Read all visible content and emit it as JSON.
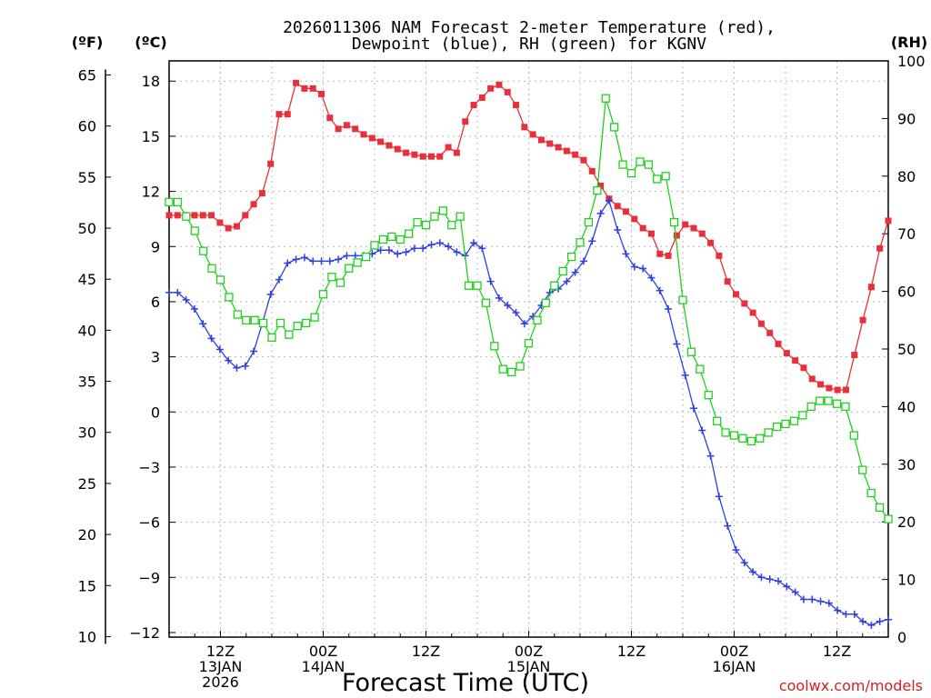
{
  "chart_data": {
    "type": "line",
    "title_line1": "2026011306 NAM Forecast 2-meter Temperature (red),",
    "title_line2": "Dewpoint (blue), RH (green) for KGNV",
    "xlabel": "Forecast Time (UTC)",
    "credit": "coolwx.com/models",
    "unit_left_f": "(ºF)",
    "unit_left_c": "(ºC)",
    "unit_right": "(RH)",
    "x_hours_range": [
      0,
      84
    ],
    "celsius_range": [
      -12.25,
      19.1
    ],
    "rh_range": [
      0,
      100
    ],
    "f_ticks": [
      "10",
      "15",
      "20",
      "25",
      "30",
      "35",
      "40",
      "45",
      "50",
      "55",
      "60",
      "65"
    ],
    "c_ticks": [
      "-12",
      "-9",
      "-6",
      "-3",
      "0",
      "3",
      "6",
      "9",
      "12",
      "15",
      "18"
    ],
    "rh_ticks": [
      "0",
      "10",
      "20",
      "30",
      "40",
      "50",
      "60",
      "70",
      "80",
      "90",
      "100"
    ],
    "x_ticks": [
      {
        "hour": 6,
        "lines": [
          "12Z",
          "13JAN",
          "2026"
        ]
      },
      {
        "hour": 18,
        "lines": [
          "00Z",
          "14JAN"
        ]
      },
      {
        "hour": 30,
        "lines": [
          "12Z"
        ]
      },
      {
        "hour": 42,
        "lines": [
          "00Z",
          "15JAN"
        ]
      },
      {
        "hour": 54,
        "lines": [
          "12Z"
        ]
      },
      {
        "hour": 66,
        "lines": [
          "00Z",
          "16JAN"
        ]
      },
      {
        "hour": 78,
        "lines": [
          "12Z"
        ]
      }
    ],
    "series": [
      {
        "name": "2-meter Temperature",
        "unit": "C",
        "color": "#e8303a",
        "marker": "filled-square",
        "values": [
          10.7,
          10.7,
          10.7,
          10.7,
          10.7,
          10.7,
          10.3,
          10.0,
          10.1,
          10.7,
          11.3,
          11.9,
          13.5,
          16.2,
          16.2,
          17.9,
          17.6,
          17.6,
          17.3,
          16.0,
          15.4,
          15.6,
          15.4,
          15.1,
          14.9,
          14.7,
          14.5,
          14.3,
          14.1,
          14.0,
          13.9,
          13.9,
          13.9,
          14.4,
          14.1,
          15.8,
          16.7,
          17.1,
          17.6,
          17.8,
          17.4,
          16.7,
          15.5,
          15.1,
          14.8,
          14.6,
          14.4,
          14.2,
          14.0,
          13.7,
          13.1,
          12.3,
          11.6,
          11.2,
          10.9,
          10.5,
          10.0,
          9.7,
          8.6,
          8.5,
          9.6,
          10.2,
          10.0,
          9.7,
          9.2,
          8.5,
          7.1,
          6.4,
          5.9,
          5.4,
          4.8,
          4.3,
          3.7,
          3.2,
          2.8,
          2.4,
          1.8,
          1.5,
          1.3,
          1.2,
          1.2,
          3.1,
          5.0,
          6.8,
          8.9,
          10.4
        ]
      },
      {
        "name": "Dewpoint",
        "unit": "C",
        "color": "#2f3fe0",
        "marker": "plus",
        "values": [
          6.5,
          6.5,
          6.1,
          5.6,
          4.8,
          4.0,
          3.4,
          2.8,
          2.4,
          2.5,
          3.3,
          4.8,
          6.4,
          7.2,
          8.1,
          8.3,
          8.4,
          8.2,
          8.2,
          8.2,
          8.3,
          8.5,
          8.5,
          8.5,
          8.6,
          8.8,
          8.8,
          8.6,
          8.7,
          8.9,
          8.9,
          9.1,
          9.2,
          9.0,
          8.7,
          8.5,
          9.2,
          8.9,
          7.1,
          6.2,
          5.8,
          5.4,
          4.8,
          5.2,
          5.8,
          6.5,
          6.7,
          7.1,
          7.6,
          8.2,
          9.3,
          10.8,
          11.5,
          9.9,
          8.6,
          7.9,
          7.8,
          7.3,
          6.6,
          5.6,
          3.7,
          2.0,
          0.2,
          -1.0,
          -2.4,
          -4.6,
          -6.2,
          -7.5,
          -8.2,
          -8.7,
          -9.0,
          -9.1,
          -9.2,
          -9.5,
          -9.8,
          -10.2,
          -10.2,
          -10.3,
          -10.4,
          -10.8,
          -11.0,
          -11.0,
          -11.4,
          -11.6,
          -11.4,
          -11.3
        ]
      },
      {
        "name": "RH",
        "unit": "%",
        "color": "#20d020",
        "marker": "open-square",
        "values": [
          75.5,
          75.5,
          73,
          70.5,
          67,
          64,
          62,
          59,
          56,
          55,
          55,
          54.5,
          52,
          54.5,
          52.5,
          54,
          54.5,
          55.5,
          59.5,
          62.5,
          61.5,
          64,
          65,
          66,
          68,
          69,
          69.5,
          69,
          70,
          72,
          71.5,
          73,
          74,
          71.5,
          73,
          61,
          61,
          58,
          50.5,
          46.5,
          46,
          47,
          51,
          55,
          58,
          61,
          63.5,
          66,
          68.5,
          72,
          77.5,
          93.5,
          88.5,
          82,
          80.5,
          82.5,
          82,
          79.5,
          80,
          72,
          58.5,
          49.5,
          46.5,
          42,
          37.5,
          35.5,
          35,
          34.5,
          34,
          34.5,
          35.5,
          36.5,
          37,
          37.5,
          38.5,
          40,
          41,
          41,
          40.5,
          40,
          35,
          29,
          25,
          22.5,
          20.5
        ]
      }
    ]
  }
}
